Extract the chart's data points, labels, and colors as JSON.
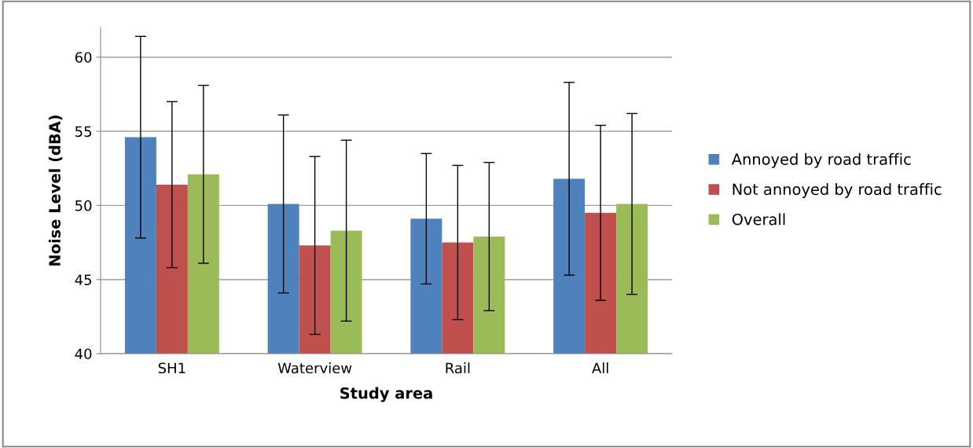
{
  "chart_data": {
    "type": "bar",
    "xlabel": "Study area",
    "ylabel": "Noise Level (dBA)",
    "categories": [
      "SH1",
      "Waterview",
      "Rail",
      "All"
    ],
    "series": [
      {
        "name": "Annoyed by road traffic",
        "color": "#4f81bd",
        "values": [
          54.6,
          50.1,
          49.1,
          51.8
        ],
        "errors": [
          6.8,
          6.0,
          4.4,
          6.5
        ]
      },
      {
        "name": "Not annoyed by road traffic",
        "color": "#c0504d",
        "values": [
          51.4,
          47.3,
          47.5,
          49.5
        ],
        "errors": [
          5.6,
          6.0,
          5.2,
          5.9
        ]
      },
      {
        "name": "Overall",
        "color": "#9bbb59",
        "values": [
          52.1,
          48.3,
          47.9,
          50.1
        ],
        "errors": [
          6.0,
          6.1,
          5.0,
          6.1
        ]
      }
    ],
    "ylim": [
      40,
      62
    ],
    "yticks": [
      40,
      45,
      50,
      55,
      60
    ],
    "grid": "y",
    "legend": "right"
  }
}
